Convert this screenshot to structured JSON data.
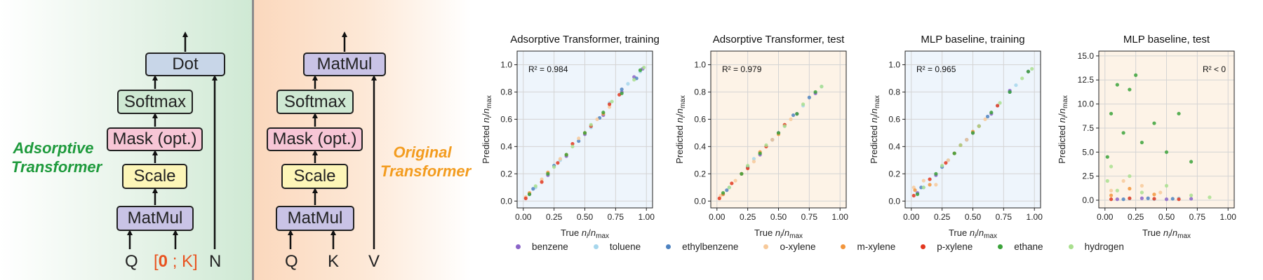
{
  "left_diagram": {
    "side_label_lines": [
      "Adsorptive",
      "Transformer"
    ],
    "blocks": {
      "dot": "Dot",
      "softmax": "Softmax",
      "mask": "Mask (opt.)",
      "scale": "Scale",
      "matmul": "MatMul"
    },
    "inputs": {
      "q": "Q",
      "k_bracket_open": "[",
      "k_zero": "0",
      "k_sep": " ; K",
      "k_bracket_close": "]",
      "n": "N"
    }
  },
  "right_diagram": {
    "side_label_lines": [
      "Original",
      "Transformer"
    ],
    "blocks": {
      "top": "MatMul",
      "softmax": "Softmax",
      "mask": "Mask (opt.)",
      "scale": "Scale",
      "matmul": "MatMul"
    },
    "inputs": {
      "q": "Q",
      "k": "K",
      "v": "V"
    }
  },
  "colors": {
    "adsorptive_label": "#1e9a3c",
    "original_label": "#f39c1f",
    "red_text": "#e8521f",
    "block_dot": "#c8d6e8",
    "block_softmax": "#cfe9d3",
    "block_mask": "#f7c6d6",
    "block_scale": "#fdf6b8",
    "block_matmul": "#c9c3e6"
  },
  "chart_data": [
    {
      "type": "scatter",
      "title": "Adsorptive Transformer, training",
      "xlabel": "True n_i/n_max",
      "ylabel": "Predicted n_i/n_max",
      "xlim": [
        -0.05,
        1.05
      ],
      "ylim": [
        -0.05,
        1.1
      ],
      "xticks": [
        "0.00",
        "0.25",
        "0.50",
        "0.75",
        "1.00"
      ],
      "yticks": [
        "0.0",
        "0.2",
        "0.4",
        "0.6",
        "0.8",
        "1.0"
      ],
      "annotation": "R² = 0.984",
      "background": "#eef5fc",
      "grid": true,
      "series": [
        {
          "name": "benzene",
          "points": [
            [
              0.05,
              0.05
            ],
            [
              0.2,
              0.19
            ],
            [
              0.35,
              0.33
            ],
            [
              0.5,
              0.49
            ],
            [
              0.65,
              0.63
            ],
            [
              0.8,
              0.8
            ],
            [
              0.9,
              0.91
            ],
            [
              0.97,
              0.97
            ]
          ]
        },
        {
          "name": "toluene",
          "points": [
            [
              0.1,
              0.1
            ],
            [
              0.3,
              0.3
            ],
            [
              0.55,
              0.54
            ],
            [
              0.7,
              0.72
            ],
            [
              0.85,
              0.86
            ],
            [
              0.95,
              0.95
            ]
          ]
        },
        {
          "name": "ethylbenzene",
          "points": [
            [
              0.08,
              0.09
            ],
            [
              0.25,
              0.26
            ],
            [
              0.45,
              0.44
            ],
            [
              0.62,
              0.61
            ],
            [
              0.8,
              0.82
            ],
            [
              0.92,
              0.9
            ]
          ]
        },
        {
          "name": "o-xylene",
          "points": [
            [
              0.02,
              0.03
            ],
            [
              0.15,
              0.16
            ],
            [
              0.3,
              0.31
            ],
            [
              0.45,
              0.46
            ],
            [
              0.6,
              0.6
            ],
            [
              0.7,
              0.69
            ]
          ]
        },
        {
          "name": "m-xylene",
          "points": [
            [
              0.05,
              0.06
            ],
            [
              0.2,
              0.21
            ],
            [
              0.35,
              0.34
            ],
            [
              0.5,
              0.5
            ],
            [
              0.65,
              0.64
            ]
          ]
        },
        {
          "name": "p-xylene",
          "points": [
            [
              0.02,
              0.02
            ],
            [
              0.15,
              0.14
            ],
            [
              0.28,
              0.28
            ],
            [
              0.4,
              0.42
            ],
            [
              0.55,
              0.55
            ],
            [
              0.7,
              0.71
            ],
            [
              0.78,
              0.78
            ]
          ]
        },
        {
          "name": "ethane",
          "points": [
            [
              0.05,
              0.05
            ],
            [
              0.2,
              0.2
            ],
            [
              0.35,
              0.34
            ],
            [
              0.5,
              0.5
            ],
            [
              0.65,
              0.65
            ],
            [
              0.8,
              0.79
            ],
            [
              0.95,
              0.96
            ]
          ]
        },
        {
          "name": "hydrogen",
          "points": [
            [
              0.1,
              0.11
            ],
            [
              0.25,
              0.25
            ],
            [
              0.4,
              0.4
            ],
            [
              0.55,
              0.56
            ],
            [
              0.72,
              0.73
            ],
            [
              0.9,
              0.89
            ],
            [
              0.98,
              0.98
            ]
          ]
        }
      ]
    },
    {
      "type": "scatter",
      "title": "Adsorptive Transformer, test",
      "xlabel": "True n_i/n_max",
      "ylabel": "Predicted n_i/n_max",
      "xlim": [
        -0.05,
        1.05
      ],
      "ylim": [
        -0.05,
        1.1
      ],
      "xticks": [
        "0.00",
        "0.25",
        "0.50",
        "0.75",
        "1.00"
      ],
      "yticks": [
        "0.0",
        "0.2",
        "0.4",
        "0.6",
        "0.8",
        "1.0"
      ],
      "annotation": "R² = 0.979",
      "background": "#fdf3e7",
      "grid": true,
      "series": [
        {
          "name": "benzene",
          "points": [
            [
              0.05,
              0.05
            ],
            [
              0.2,
              0.2
            ],
            [
              0.35,
              0.34
            ],
            [
              0.5,
              0.5
            ],
            [
              0.65,
              0.64
            ],
            [
              0.8,
              0.79
            ]
          ]
        },
        {
          "name": "toluene",
          "points": [
            [
              0.1,
              0.1
            ],
            [
              0.3,
              0.31
            ],
            [
              0.55,
              0.55
            ],
            [
              0.7,
              0.7
            ],
            [
              0.85,
              0.84
            ]
          ]
        },
        {
          "name": "ethylbenzene",
          "points": [
            [
              0.08,
              0.08
            ],
            [
              0.25,
              0.25
            ],
            [
              0.45,
              0.45
            ],
            [
              0.62,
              0.63
            ],
            [
              0.75,
              0.76
            ]
          ]
        },
        {
          "name": "o-xylene",
          "points": [
            [
              0.03,
              0.04
            ],
            [
              0.15,
              0.15
            ],
            [
              0.3,
              0.29
            ],
            [
              0.45,
              0.45
            ],
            [
              0.6,
              0.6
            ]
          ]
        },
        {
          "name": "m-xylene",
          "points": [
            [
              0.05,
              0.05
            ],
            [
              0.2,
              0.2
            ],
            [
              0.35,
              0.36
            ],
            [
              0.5,
              0.49
            ]
          ]
        },
        {
          "name": "p-xylene",
          "points": [
            [
              0.02,
              0.02
            ],
            [
              0.12,
              0.13
            ],
            [
              0.25,
              0.24
            ],
            [
              0.4,
              0.4
            ],
            [
              0.55,
              0.56
            ]
          ]
        },
        {
          "name": "ethane",
          "points": [
            [
              0.05,
              0.06
            ],
            [
              0.2,
              0.2
            ],
            [
              0.35,
              0.35
            ],
            [
              0.5,
              0.5
            ],
            [
              0.65,
              0.64
            ],
            [
              0.8,
              0.8
            ]
          ]
        },
        {
          "name": "hydrogen",
          "points": [
            [
              0.1,
              0.1
            ],
            [
              0.25,
              0.26
            ],
            [
              0.4,
              0.41
            ],
            [
              0.55,
              0.55
            ],
            [
              0.7,
              0.71
            ],
            [
              0.85,
              0.84
            ]
          ]
        }
      ]
    },
    {
      "type": "scatter",
      "title": "MLP baseline, training",
      "xlabel": "True n_i/n_max",
      "ylabel": "Predicted n_i/n_max",
      "xlim": [
        -0.05,
        1.05
      ],
      "ylim": [
        -0.05,
        1.1
      ],
      "xticks": [
        "0.00",
        "0.25",
        "0.50",
        "0.75",
        "1.00"
      ],
      "yticks": [
        "0.0",
        "0.2",
        "0.4",
        "0.6",
        "0.8",
        "1.0"
      ],
      "annotation": "R² = 0.965",
      "background": "#eef5fc",
      "grid": true,
      "series": [
        {
          "name": "benzene",
          "points": [
            [
              0.05,
              0.06
            ],
            [
              0.2,
              0.19
            ],
            [
              0.35,
              0.35
            ],
            [
              0.5,
              0.5
            ],
            [
              0.65,
              0.64
            ],
            [
              0.8,
              0.81
            ],
            [
              0.95,
              0.95
            ]
          ]
        },
        {
          "name": "toluene",
          "points": [
            [
              0.1,
              0.1
            ],
            [
              0.3,
              0.3
            ],
            [
              0.55,
              0.55
            ],
            [
              0.7,
              0.7
            ],
            [
              0.85,
              0.85
            ]
          ]
        },
        {
          "name": "ethylbenzene",
          "points": [
            [
              0.08,
              0.1
            ],
            [
              0.25,
              0.25
            ],
            [
              0.45,
              0.45
            ],
            [
              0.62,
              0.62
            ],
            [
              0.8,
              0.8
            ]
          ]
        },
        {
          "name": "o-xylene",
          "points": [
            [
              0.02,
              0.1
            ],
            [
              0.1,
              0.15
            ],
            [
              0.2,
              0.12
            ],
            [
              0.3,
              0.3
            ],
            [
              0.45,
              0.45
            ],
            [
              0.6,
              0.6
            ]
          ]
        },
        {
          "name": "m-xylene",
          "points": [
            [
              0.03,
              0.08
            ],
            [
              0.15,
              0.12
            ],
            [
              0.35,
              0.35
            ],
            [
              0.5,
              0.51
            ]
          ]
        },
        {
          "name": "p-xylene",
          "points": [
            [
              0.02,
              0.04
            ],
            [
              0.15,
              0.16
            ],
            [
              0.28,
              0.28
            ],
            [
              0.4,
              0.41
            ],
            [
              0.55,
              0.55
            ],
            [
              0.7,
              0.7
            ]
          ]
        },
        {
          "name": "ethane",
          "points": [
            [
              0.05,
              0.05
            ],
            [
              0.2,
              0.2
            ],
            [
              0.35,
              0.35
            ],
            [
              0.5,
              0.5
            ],
            [
              0.65,
              0.65
            ],
            [
              0.8,
              0.8
            ],
            [
              0.95,
              0.95
            ]
          ]
        },
        {
          "name": "hydrogen",
          "points": [
            [
              0.1,
              0.1
            ],
            [
              0.25,
              0.26
            ],
            [
              0.4,
              0.41
            ],
            [
              0.55,
              0.55
            ],
            [
              0.72,
              0.72
            ],
            [
              0.9,
              0.9
            ],
            [
              0.98,
              0.97
            ]
          ]
        }
      ]
    },
    {
      "type": "scatter",
      "title": "MLP baseline, test",
      "xlabel": "True n_i/n_max",
      "ylabel": "Predicted n_i/n_max",
      "xlim": [
        -0.05,
        1.05
      ],
      "ylim": [
        -0.8,
        15.5
      ],
      "xticks": [
        "0.00",
        "0.25",
        "0.50",
        "0.75",
        "1.00"
      ],
      "yticks": [
        "0.0",
        "2.5",
        "5.0",
        "7.5",
        "10.0",
        "12.5",
        "15.0"
      ],
      "annotation": "R² < 0",
      "background": "#fdf3e7",
      "grid": true,
      "series": [
        {
          "name": "benzene",
          "points": [
            [
              0.1,
              0.1
            ],
            [
              0.3,
              0.2
            ],
            [
              0.5,
              0.1
            ],
            [
              0.7,
              0.15
            ]
          ]
        },
        {
          "name": "toluene",
          "points": [
            [
              0.2,
              0.15
            ],
            [
              0.4,
              0.1
            ],
            [
              0.6,
              0.2
            ]
          ]
        },
        {
          "name": "ethylbenzene",
          "points": [
            [
              0.15,
              0.1
            ],
            [
              0.35,
              0.2
            ],
            [
              0.55,
              0.15
            ]
          ]
        },
        {
          "name": "o-xylene",
          "points": [
            [
              0.05,
              1.0
            ],
            [
              0.15,
              2.0
            ],
            [
              0.3,
              1.5
            ],
            [
              0.45,
              0.8
            ]
          ]
        },
        {
          "name": "m-xylene",
          "points": [
            [
              0.05,
              0.5
            ],
            [
              0.2,
              1.2
            ],
            [
              0.4,
              0.6
            ]
          ]
        },
        {
          "name": "p-xylene",
          "points": [
            [
              0.05,
              0.1
            ],
            [
              0.2,
              0.2
            ],
            [
              0.4,
              0.15
            ],
            [
              0.6,
              0.1
            ]
          ]
        },
        {
          "name": "ethane",
          "points": [
            [
              0.02,
              4.5
            ],
            [
              0.05,
              9.0
            ],
            [
              0.1,
              12.0
            ],
            [
              0.15,
              7.0
            ],
            [
              0.2,
              11.5
            ],
            [
              0.25,
              13.0
            ],
            [
              0.3,
              6.0
            ],
            [
              0.4,
              8.0
            ],
            [
              0.5,
              5.0
            ],
            [
              0.6,
              9.0
            ],
            [
              0.7,
              4.0
            ]
          ]
        },
        {
          "name": "hydrogen",
          "points": [
            [
              0.02,
              2.0
            ],
            [
              0.05,
              3.5
            ],
            [
              0.1,
              1.0
            ],
            [
              0.2,
              2.5
            ],
            [
              0.3,
              0.8
            ],
            [
              0.5,
              1.5
            ],
            [
              0.7,
              0.5
            ],
            [
              0.85,
              0.3
            ]
          ]
        }
      ]
    }
  ],
  "legend": [
    {
      "name": "benzene",
      "color": "#8a64c8"
    },
    {
      "name": "toluene",
      "color": "#a6d6ec"
    },
    {
      "name": "ethylbenzene",
      "color": "#4d82c0"
    },
    {
      "name": "o-xylene",
      "color": "#f7c99a"
    },
    {
      "name": "m-xylene",
      "color": "#f2953c"
    },
    {
      "name": "p-xylene",
      "color": "#e2371f"
    },
    {
      "name": "ethane",
      "color": "#3ba23a"
    },
    {
      "name": "hydrogen",
      "color": "#a9df8e"
    }
  ]
}
